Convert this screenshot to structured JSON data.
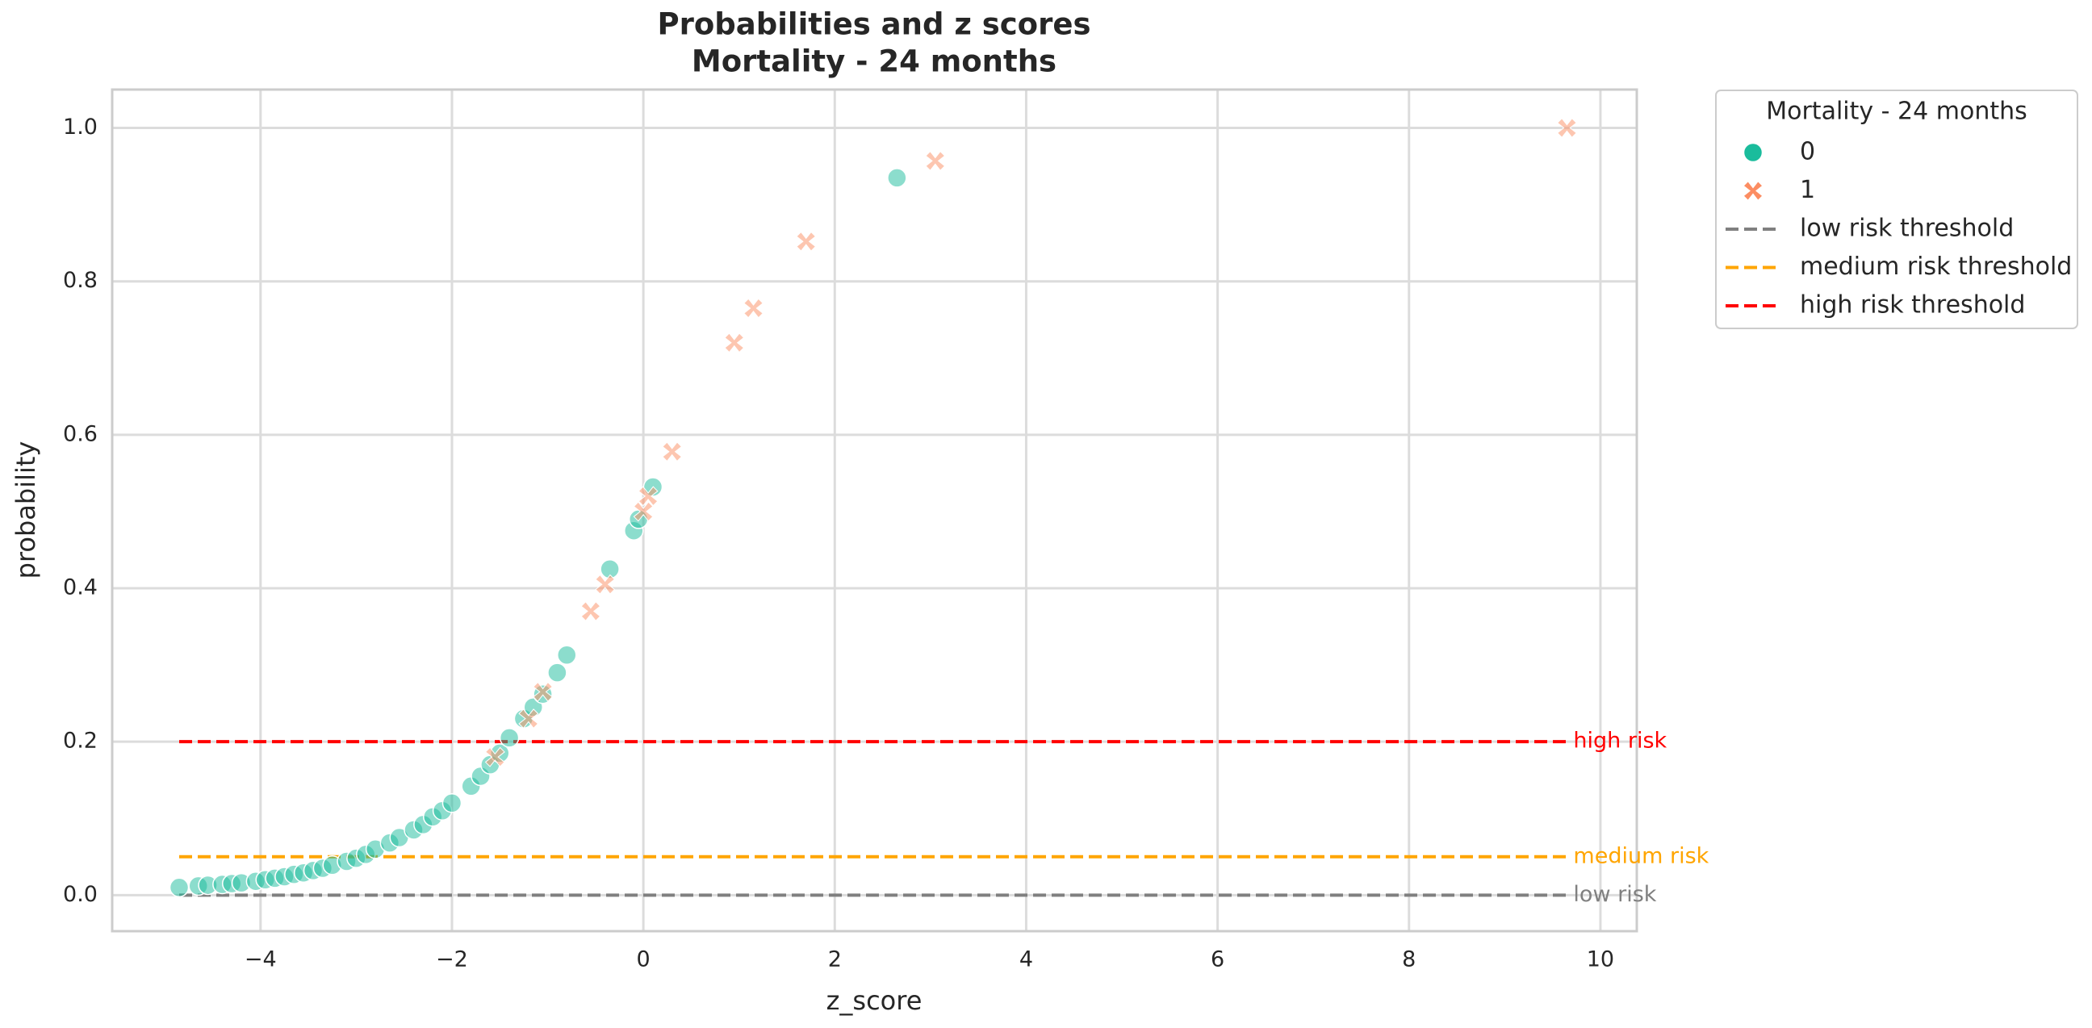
{
  "chart_data": {
    "type": "scatter",
    "title": "Probabilities and z scores",
    "subtitle": "Mortality - 24 months",
    "x_label": "z_score",
    "y_label": "probability",
    "xlim": [
      -5.55,
      10.38
    ],
    "ylim": [
      -0.047,
      1.05
    ],
    "xticks": [
      {
        "value": -4,
        "label": "−4"
      },
      {
        "value": -2,
        "label": "−2"
      },
      0,
      2,
      4,
      6,
      8,
      10
    ],
    "yticks": [
      {
        "value": 0,
        "label": "0.0"
      },
      0.2,
      0.4,
      0.6,
      0.8,
      {
        "value": 1,
        "label": "1.0"
      }
    ],
    "grid": true,
    "legend_title": "Mortality - 24 months",
    "legend_position": "outside-upper-right",
    "series": [
      {
        "name": "0",
        "color": "#1abc9c",
        "marker": "circle",
        "x": [
          -4.85,
          -4.65,
          -4.55,
          -4.4,
          -4.3,
          -4.2,
          -4.05,
          -3.95,
          -3.85,
          -3.75,
          -3.65,
          -3.55,
          -3.45,
          -3.35,
          -3.25,
          -3.1,
          -3.0,
          -2.9,
          -2.8,
          -2.65,
          -2.55,
          -2.4,
          -2.3,
          -2.2,
          -2.1,
          -2.0,
          -1.8,
          -1.7,
          -1.6,
          -1.5,
          -1.4,
          -1.25,
          -1.15,
          -1.05,
          -0.9,
          -0.8,
          -0.35,
          -0.1,
          -0.05,
          0.1,
          2.65
        ],
        "values": [
          0.01,
          0.012,
          0.013,
          0.014,
          0.015,
          0.016,
          0.018,
          0.02,
          0.022,
          0.024,
          0.027,
          0.029,
          0.032,
          0.035,
          0.039,
          0.044,
          0.048,
          0.053,
          0.06,
          0.068,
          0.075,
          0.085,
          0.092,
          0.102,
          0.11,
          0.12,
          0.142,
          0.155,
          0.17,
          0.185,
          0.205,
          0.23,
          0.245,
          0.262,
          0.29,
          0.313,
          0.425,
          0.475,
          0.49,
          0.532,
          0.935
        ]
      },
      {
        "name": "1",
        "color": "#fc8d62",
        "marker": "x",
        "x": [
          -1.55,
          -1.2,
          -1.05,
          -0.55,
          -0.4,
          0.0,
          0.05,
          0.3,
          0.95,
          1.15,
          1.7,
          3.05,
          9.65
        ],
        "values": [
          0.18,
          0.23,
          0.265,
          0.37,
          0.405,
          0.5,
          0.52,
          0.578,
          0.72,
          0.765,
          0.852,
          0.957,
          1.0
        ]
      }
    ],
    "thresholds": [
      {
        "name": "low risk threshold",
        "label": "low risk",
        "value": 0,
        "color": "#808080"
      },
      {
        "name": "medium risk threshold",
        "label": "medium risk",
        "value": 0.05,
        "color": "#ffa500"
      },
      {
        "name": "high risk threshold",
        "label": "high risk",
        "value": 0.2,
        "color": "#ff0000"
      }
    ]
  }
}
